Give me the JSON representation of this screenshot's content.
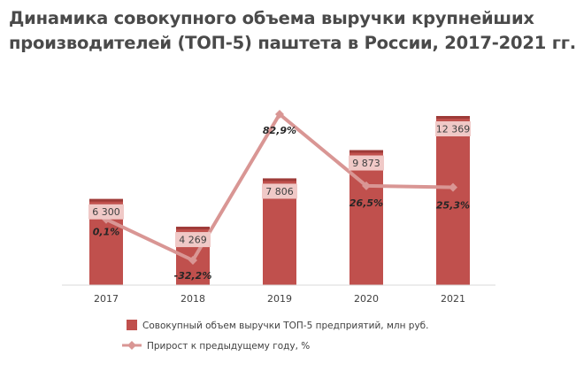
{
  "title": {
    "line1": "Динамика совокупного объема выручки крупнейших",
    "line2": "производителей (ТОП-5) паштета в России, 2017-2021 гг."
  },
  "colors": {
    "bar": "#c0504d",
    "bar_top": "#9e3b38",
    "label_box": "#f0c9c7",
    "line": "#d99694",
    "text": "#404040",
    "title": "#4a4a4a"
  },
  "chart_data": {
    "type": "bar",
    "categories": [
      "2017",
      "2018",
      "2019",
      "2020",
      "2021"
    ],
    "series": [
      {
        "name": "Совокупный объем выручки ТОП-5 предприятий,  млн руб.",
        "type": "bar",
        "values": [
          6300,
          4269,
          7806,
          9873,
          12369
        ],
        "labels": [
          "6 300",
          "4 269",
          "7 806",
          "9 873",
          "12 369"
        ]
      },
      {
        "name": "Прирост к предыдущему году, %",
        "type": "line",
        "values": [
          0.1,
          -32.2,
          82.9,
          26.5,
          25.3
        ],
        "labels": [
          "0,1%",
          "-32,2%",
          "82,9%",
          "26,5%",
          "25,3%"
        ]
      }
    ],
    "legend_position": "bottom",
    "grid": false
  }
}
